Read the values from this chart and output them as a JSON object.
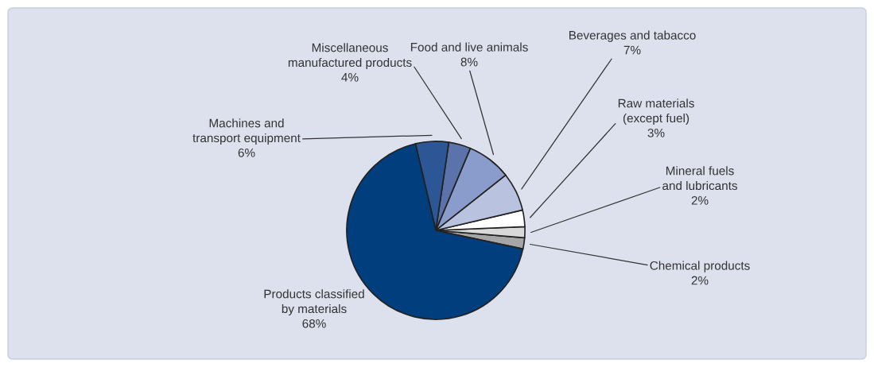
{
  "chart_data": {
    "type": "pie",
    "categories": [
      "Chemical products",
      "Mineral fuels\nand lubricants",
      "Raw materials\n(except fuel)",
      "Beverages and tabacco",
      "Food and live animals",
      "Miscellaneous\nmanufactured products",
      "Machines and\ntransport equipment",
      "Products classified\nby materials"
    ],
    "values": [
      2,
      2,
      3,
      7,
      8,
      4,
      6,
      68
    ],
    "value_labels": [
      "2%",
      "2%",
      "3%",
      "7%",
      "8%",
      "4%",
      "6%",
      "68%"
    ],
    "colors": [
      "#a6a6a6",
      "#d9d9d9",
      "#ffffff",
      "#b9c3e0",
      "#8a9ccb",
      "#5b72aa",
      "#2c5696",
      "#003e7e"
    ],
    "legend": false
  }
}
